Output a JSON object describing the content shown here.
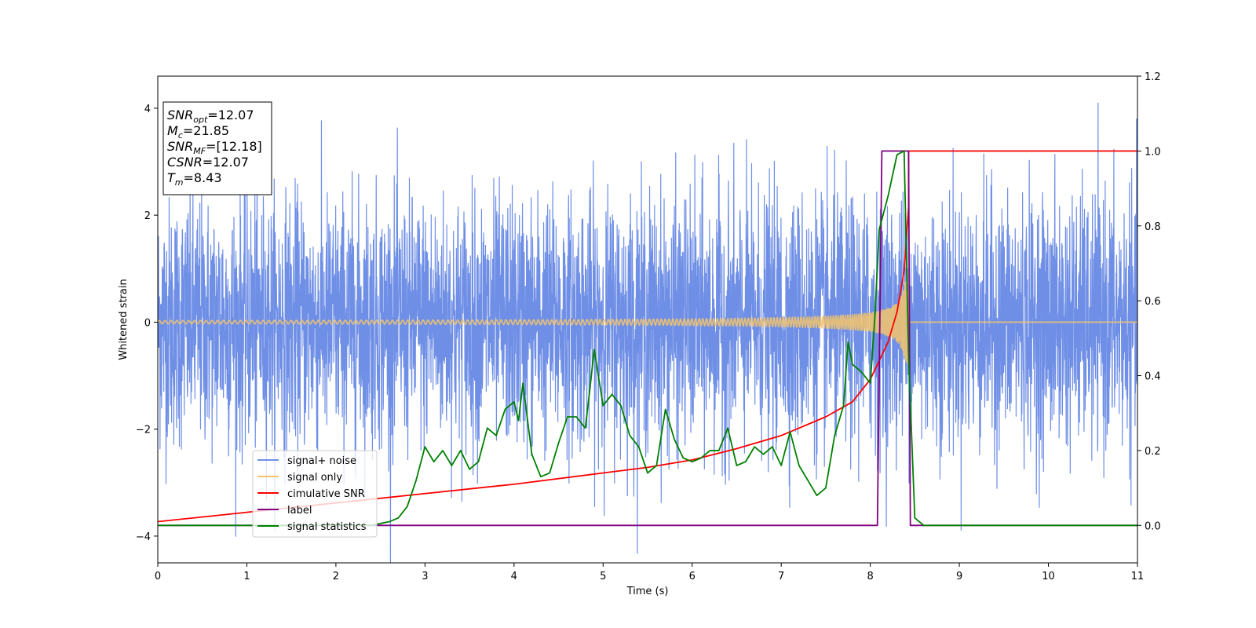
{
  "chart_data": {
    "type": "line",
    "xlabel": "Time (s)",
    "ylabel": "Whitened strain",
    "xlim": [
      0,
      11
    ],
    "ylim": [
      -4.5,
      4.6
    ],
    "y2lim": [
      -0.1,
      1.2
    ],
    "x_ticks": [
      "0",
      "1",
      "2",
      "3",
      "4",
      "5",
      "6",
      "7",
      "8",
      "9",
      "10",
      "11"
    ],
    "y_ticks": [
      "−4",
      "−2",
      "0",
      "2",
      "4"
    ],
    "y2_ticks": [
      "0.0",
      "0.2",
      "0.4",
      "0.6",
      "0.8",
      "1.0",
      "1.2"
    ],
    "grid": false,
    "legend_position": "lower-left",
    "info_box": [
      {
        "main": "SNR",
        "sub": "opt",
        "rest": "=12.07"
      },
      {
        "main": "M",
        "sub": "c",
        "rest": "=21.85"
      },
      {
        "main": "SNR",
        "sub": "MF",
        "rest": "=[12.18]"
      },
      {
        "main": "CSNR",
        "sub": "",
        "rest": "=12.07"
      },
      {
        "main": "T",
        "sub": "m",
        "rest": "=8.43"
      }
    ],
    "series": [
      {
        "name": "signal+ noise",
        "color": "#6f8fe6",
        "axis": "left",
        "kind": "noise",
        "std": 1.0,
        "t_end": 11
      },
      {
        "name": "signal only",
        "color": "#f5c46b",
        "axis": "left",
        "kind": "chirp",
        "t_coal": 8.43,
        "amp_start": 0.03,
        "amp_peak": 1.1
      },
      {
        "name": "cimulative SNR",
        "color": "#ff0000",
        "axis": "right",
        "x": [
          0,
          1,
          2,
          3,
          4,
          5,
          5.5,
          6,
          6.5,
          7,
          7.5,
          7.8,
          8.0,
          8.2,
          8.3,
          8.38,
          8.43,
          8.43,
          11
        ],
        "values": [
          0.01,
          0.035,
          0.06,
          0.085,
          0.11,
          0.14,
          0.155,
          0.175,
          0.205,
          0.24,
          0.29,
          0.33,
          0.39,
          0.49,
          0.57,
          0.68,
          0.85,
          1.0,
          1.0
        ]
      },
      {
        "name": "label",
        "color": "#800080",
        "axis": "right",
        "x": [
          0,
          8.08,
          8.13,
          8.43,
          8.45,
          11
        ],
        "values": [
          0.0,
          0.0,
          1.0,
          1.0,
          0.0,
          0.0
        ]
      },
      {
        "name": "signal statistics",
        "color": "#008000",
        "axis": "right",
        "x": [
          0,
          0.5,
          1,
          1.5,
          2,
          2.4,
          2.6,
          2.7,
          2.8,
          2.9,
          3.0,
          3.1,
          3.2,
          3.3,
          3.4,
          3.5,
          3.6,
          3.7,
          3.8,
          3.9,
          4.0,
          4.05,
          4.1,
          4.2,
          4.3,
          4.4,
          4.5,
          4.6,
          4.7,
          4.8,
          4.85,
          4.9,
          5.0,
          5.1,
          5.2,
          5.3,
          5.4,
          5.5,
          5.6,
          5.7,
          5.8,
          5.9,
          6.0,
          6.1,
          6.2,
          6.3,
          6.4,
          6.5,
          6.6,
          6.7,
          6.8,
          6.9,
          7.0,
          7.1,
          7.2,
          7.3,
          7.4,
          7.5,
          7.6,
          7.7,
          7.75,
          7.8,
          7.9,
          8.0,
          8.05,
          8.1,
          8.2,
          8.3,
          8.38,
          8.43,
          8.5,
          8.6,
          8.8,
          9,
          10,
          11
        ],
        "values": [
          0.0,
          0.0,
          0.0,
          0.0,
          0.0,
          0.0,
          0.01,
          0.02,
          0.05,
          0.12,
          0.21,
          0.17,
          0.2,
          0.16,
          0.2,
          0.15,
          0.17,
          0.26,
          0.24,
          0.31,
          0.33,
          0.28,
          0.38,
          0.19,
          0.13,
          0.14,
          0.22,
          0.29,
          0.29,
          0.26,
          0.36,
          0.47,
          0.32,
          0.35,
          0.32,
          0.24,
          0.21,
          0.14,
          0.16,
          0.31,
          0.23,
          0.18,
          0.17,
          0.18,
          0.2,
          0.2,
          0.26,
          0.16,
          0.17,
          0.21,
          0.19,
          0.21,
          0.16,
          0.25,
          0.16,
          0.12,
          0.08,
          0.1,
          0.24,
          0.32,
          0.49,
          0.43,
          0.41,
          0.38,
          0.55,
          0.79,
          0.88,
          0.99,
          1.0,
          0.45,
          0.02,
          0.0,
          0.0,
          0.0,
          0.0,
          0.0
        ]
      }
    ]
  }
}
